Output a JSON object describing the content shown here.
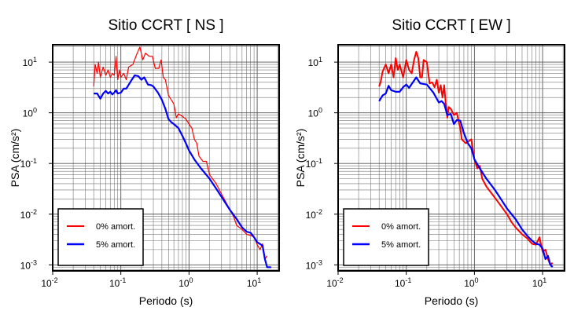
{
  "chart_data": [
    {
      "type": "line",
      "title": "Sitio CCRT [ NS ]",
      "xlabel": "Periodo (s)",
      "ylabel": "PSA (cm/s²)",
      "xscale": "log",
      "yscale": "log",
      "xlim": [
        0.01,
        21
      ],
      "ylim": [
        0.00076,
        22
      ],
      "xtick_exponents": [
        -2,
        -1,
        0,
        1
      ],
      "ytick_exponents": [
        -3,
        -2,
        -1,
        0,
        1
      ],
      "tick_base": "10",
      "grid": true,
      "legend_placement": "bottom-left",
      "series": [
        {
          "name": "0% amort.",
          "color": "#ff0000",
          "x": [
            0.04,
            0.042,
            0.045,
            0.047,
            0.05,
            0.055,
            0.06,
            0.065,
            0.07,
            0.075,
            0.08,
            0.085,
            0.09,
            0.095,
            0.1,
            0.11,
            0.12,
            0.13,
            0.15,
            0.17,
            0.19,
            0.21,
            0.23,
            0.26,
            0.29,
            0.32,
            0.36,
            0.39,
            0.42,
            0.45,
            0.5,
            0.55,
            0.6,
            0.65,
            0.7,
            0.8,
            0.9,
            1.0,
            1.1,
            1.2,
            1.3,
            1.4,
            1.6,
            1.8,
            2.0,
            2.5,
            3.0,
            3.5,
            4,
            4.5,
            5,
            6,
            7,
            8,
            9,
            10,
            11,
            12,
            13,
            14
          ],
          "y": [
            3.3,
            9,
            6,
            10,
            5,
            8,
            5.5,
            7,
            5,
            6,
            5.5,
            13,
            4.5,
            7,
            5,
            6,
            4.5,
            8,
            9,
            14,
            20,
            11,
            15,
            13,
            13,
            7.5,
            7.5,
            11,
            5,
            4.5,
            2.2,
            1.8,
            1.5,
            0.8,
            0.95,
            0.85,
            0.75,
            0.6,
            0.5,
            0.3,
            0.25,
            0.14,
            0.11,
            0.11,
            0.06,
            0.04,
            0.025,
            0.017,
            0.012,
            0.009,
            0.006,
            0.005,
            0.004,
            0.0038,
            0.0036,
            0.0025,
            0.002,
            0.0026,
            0.0013,
            0.0015
          ]
        },
        {
          "name": "5% amort.",
          "color": "#0000ff",
          "x": [
            0.04,
            0.045,
            0.05,
            0.055,
            0.06,
            0.065,
            0.07,
            0.075,
            0.08,
            0.085,
            0.09,
            0.1,
            0.11,
            0.12,
            0.14,
            0.16,
            0.18,
            0.2,
            0.22,
            0.25,
            0.28,
            0.3,
            0.35,
            0.4,
            0.45,
            0.5,
            0.55,
            0.6,
            0.7,
            0.8,
            0.9,
            1.0,
            1.2,
            1.5,
            2,
            2.5,
            3,
            4,
            5,
            6,
            7,
            8,
            9,
            10,
            12,
            13,
            14,
            16
          ],
          "y": [
            2.4,
            2.4,
            1.9,
            2.4,
            2.7,
            2.4,
            2.6,
            2.3,
            2.5,
            2.8,
            2.4,
            2.5,
            3.0,
            3.0,
            4.2,
            5.5,
            5.3,
            4.5,
            5.0,
            3.6,
            3.5,
            3.3,
            2.5,
            1.8,
            1.2,
            0.75,
            0.65,
            0.6,
            0.5,
            0.35,
            0.25,
            0.18,
            0.12,
            0.08,
            0.05,
            0.032,
            0.022,
            0.012,
            0.008,
            0.0055,
            0.0045,
            0.0043,
            0.0035,
            0.0028,
            0.0024,
            0.0013,
            0.0009,
            0.0009
          ]
        }
      ]
    },
    {
      "type": "line",
      "title": "Sitio CCRT [ EW ]",
      "xlabel": "Periodo (s)",
      "ylabel": "PSA (cm/s²)",
      "xscale": "log",
      "yscale": "log",
      "xlim": [
        0.01,
        21
      ],
      "ylim": [
        0.00076,
        22
      ],
      "xtick_exponents": [
        -2,
        -1,
        0,
        1
      ],
      "ytick_exponents": [
        -3,
        -2,
        -1,
        0,
        1
      ],
      "tick_base": "10",
      "grid": true,
      "legend_placement": "bottom-left",
      "series": [
        {
          "name": "0% amort.",
          "color": "#ff0000",
          "x": [
            0.04,
            0.042,
            0.045,
            0.05,
            0.055,
            0.06,
            0.065,
            0.07,
            0.075,
            0.08,
            0.09,
            0.1,
            0.11,
            0.12,
            0.13,
            0.14,
            0.15,
            0.16,
            0.17,
            0.18,
            0.2,
            0.22,
            0.24,
            0.26,
            0.28,
            0.3,
            0.32,
            0.34,
            0.36,
            0.38,
            0.4,
            0.42,
            0.45,
            0.5,
            0.55,
            0.6,
            0.62,
            0.65,
            0.75,
            0.9,
            1.0,
            1.1,
            1.2,
            1.3,
            1.5,
            2,
            2.5,
            3,
            3.5,
            4,
            5,
            6,
            7,
            8,
            9,
            10,
            11,
            12,
            13,
            14
          ],
          "y": [
            3.3,
            4,
            6.5,
            9,
            6,
            9,
            5,
            12,
            7,
            9,
            5,
            11,
            7,
            6,
            11,
            16,
            12,
            5,
            5,
            11,
            10,
            3.8,
            4.0,
            3.2,
            4.5,
            2.5,
            3.5,
            2.0,
            3.5,
            1.5,
            0.8,
            1.3,
            1.2,
            0.9,
            1.0,
            0.6,
            0.5,
            0.3,
            0.25,
            0.3,
            0.12,
            0.08,
            0.09,
            0.05,
            0.035,
            0.021,
            0.014,
            0.01,
            0.007,
            0.0055,
            0.004,
            0.0033,
            0.0026,
            0.0025,
            0.0035,
            0.0018,
            0.002,
            0.0013,
            0.001,
            0.0011
          ]
        },
        {
          "name": "5% amort.",
          "color": "#0000ff",
          "x": [
            0.04,
            0.045,
            0.05,
            0.055,
            0.06,
            0.07,
            0.08,
            0.09,
            0.1,
            0.11,
            0.12,
            0.14,
            0.16,
            0.2,
            0.25,
            0.3,
            0.33,
            0.36,
            0.4,
            0.45,
            0.5,
            0.55,
            0.62,
            0.7,
            0.8,
            0.9,
            1.0,
            1.2,
            1.5,
            2,
            2.5,
            3,
            4,
            5,
            6,
            7,
            8,
            9,
            10,
            11,
            12,
            13,
            14
          ],
          "y": [
            1.7,
            2.2,
            2.4,
            3.4,
            2.8,
            2.6,
            2.6,
            3.2,
            3.6,
            3.1,
            3.7,
            5.0,
            3.8,
            3.6,
            2.5,
            1.6,
            1.7,
            1.5,
            0.9,
            0.95,
            0.6,
            0.72,
            0.7,
            0.4,
            0.25,
            0.2,
            0.12,
            0.08,
            0.05,
            0.03,
            0.019,
            0.013,
            0.008,
            0.005,
            0.0037,
            0.003,
            0.0026,
            0.0025,
            0.0021,
            0.0013,
            0.0015,
            0.001,
            0.0009
          ]
        }
      ]
    }
  ]
}
